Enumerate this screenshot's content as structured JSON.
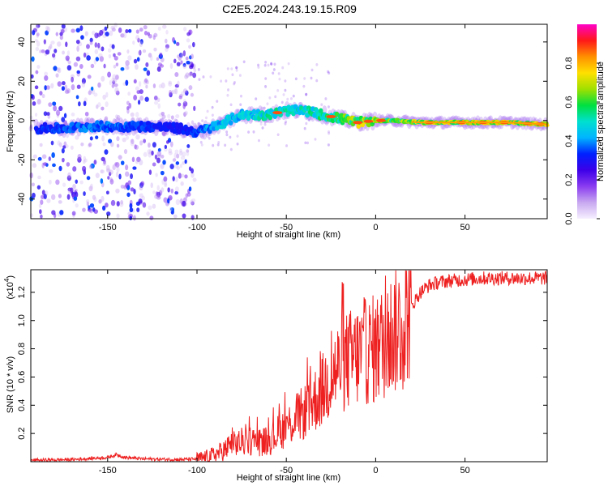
{
  "title": "C2E5.2024.243.19.15.R09",
  "chart_data": [
    {
      "type": "heatmap",
      "name": "spectrogram",
      "xlabel": "Height of straight line (km)",
      "ylabel": "Frequency (Hz)",
      "xlim": [
        -193,
        96
      ],
      "ylim": [
        -50,
        49
      ],
      "xticks": [
        -150,
        -100,
        -50,
        0,
        50
      ],
      "xtick_labels": [
        "-150",
        "-100",
        "-50",
        "0",
        "50"
      ],
      "yticks": [
        -40,
        -20,
        0,
        20,
        40
      ],
      "ytick_labels": [
        "-40",
        "-20",
        "0",
        "20",
        "40"
      ],
      "colorbar": {
        "label": "Normalized spectral amplitude",
        "range": [
          0,
          1
        ],
        "ticks": [
          0.0,
          0.2,
          0.4,
          0.6,
          0.8
        ],
        "tick_labels": [
          "0.0",
          "0.2",
          "0.4",
          "0.6",
          "0.8"
        ],
        "colors": [
          "#f6f0ff",
          "#c8a8f0",
          "#8a3cf0",
          "#3c00e8",
          "#0020ff",
          "#00b4ff",
          "#00e0d0",
          "#00e040",
          "#a0e000",
          "#ffe000",
          "#ff9000",
          "#ff1818",
          "#ff00c8"
        ]
      },
      "ridge": {
        "x": [
          -190,
          -175,
          -160,
          -140,
          -125,
          -110,
          -100,
          -90,
          -75,
          -60,
          -50,
          -40,
          -30,
          -20,
          -10,
          0,
          10,
          25,
          50,
          75,
          96
        ],
        "freq": [
          -4,
          -4,
          -3,
          -3,
          -3,
          -4,
          -6,
          -3,
          3,
          3,
          5,
          5,
          3,
          1,
          -1,
          0,
          0,
          -1,
          -1,
          -1,
          -2
        ],
        "amplitude": [
          0.18,
          0.24,
          0.28,
          0.25,
          0.2,
          0.16,
          0.22,
          0.38,
          0.42,
          0.5,
          0.52,
          0.5,
          0.55,
          0.62,
          0.78,
          0.78,
          0.7,
          0.82,
          0.86,
          0.88,
          0.82
        ]
      },
      "noise_region_x": [
        -193,
        -101
      ]
    },
    {
      "type": "line",
      "name": "snr",
      "xlabel": "Height of straight line (km)",
      "ylabel": "SNR (10 * v/v)",
      "y_scale_label": "(x10",
      "y_scale_exp": "4",
      "y_scale_close": ")",
      "xlim": [
        -193,
        96
      ],
      "ylim": [
        0,
        1.36
      ],
      "xticks": [
        -150,
        -100,
        -50,
        0,
        50
      ],
      "xtick_labels": [
        "-150",
        "-100",
        "-50",
        "0",
        "50"
      ],
      "yticks": [
        0.2,
        0.4,
        0.6,
        0.8,
        1.0,
        1.2
      ],
      "ytick_labels": [
        "0.2",
        "0.4",
        "0.6",
        "0.8",
        "1.0",
        "1.2"
      ],
      "color": "#ee2020",
      "x": [
        -193,
        -170,
        -150,
        -145,
        -140,
        -130,
        -110,
        -100,
        -95,
        -90,
        -85,
        -80,
        -75,
        -70,
        -65,
        -60,
        -55,
        -50,
        -45,
        -40,
        -35,
        -30,
        -25,
        -20,
        -15,
        -10,
        -5,
        0,
        5,
        10,
        15,
        20,
        25,
        30,
        35,
        40,
        50,
        60,
        70,
        80,
        90,
        96
      ],
      "values": [
        0.01,
        0.015,
        0.03,
        0.05,
        0.03,
        0.02,
        0.015,
        0.02,
        0.03,
        0.05,
        0.08,
        0.12,
        0.14,
        0.15,
        0.14,
        0.15,
        0.2,
        0.25,
        0.3,
        0.35,
        0.42,
        0.5,
        0.6,
        0.68,
        0.72,
        0.75,
        0.78,
        0.8,
        0.85,
        0.92,
        0.98,
        1.1,
        1.2,
        1.25,
        1.27,
        1.28,
        1.29,
        1.3,
        1.3,
        1.3,
        1.3,
        1.3
      ]
    }
  ]
}
